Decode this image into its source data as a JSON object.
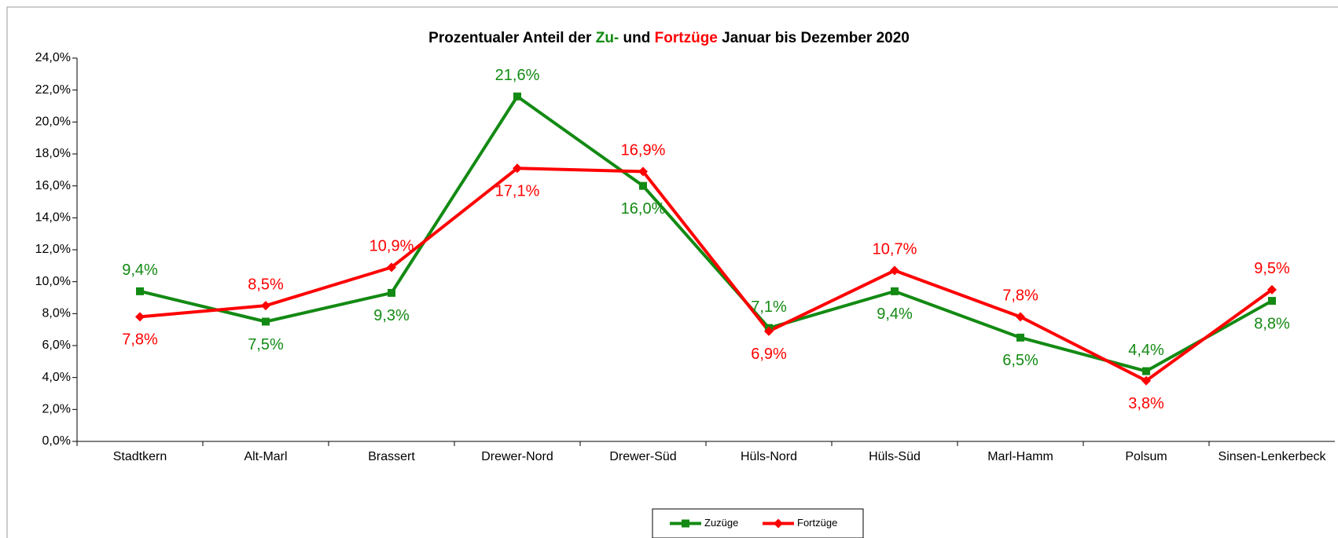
{
  "chart_data": {
    "type": "line",
    "title_parts": [
      {
        "text": "Prozentualer Anteil der"
      },
      {
        "text": "Zu-",
        "color": "#138a13"
      },
      {
        "text": "und"
      },
      {
        "text": "Fortzüge",
        "color": "#ff0000"
      },
      {
        "text": "Januar bis Dezember 2020"
      }
    ],
    "categories": [
      "Stadtkern",
      "Alt-Marl",
      "Brassert",
      "Drewer-Nord",
      "Drewer-Süd",
      "Hüls-Nord",
      "Hüls-Süd",
      "Marl-Hamm",
      "Polsum",
      "Sinsen-Lenkerbeck"
    ],
    "series": [
      {
        "name": "Zuzüge",
        "color": "#138a13",
        "marker": "square",
        "values": [
          9.4,
          7.5,
          9.3,
          21.6,
          16.0,
          7.1,
          9.4,
          6.5,
          4.4,
          8.8
        ],
        "value_labels": [
          "9,4%",
          "7,5%",
          "9,3%",
          "21,6%",
          "16,0%",
          "7,1%",
          "9,4%",
          "6,5%",
          "4,4%",
          "8,8%"
        ]
      },
      {
        "name": "Fortzüge",
        "color": "#ff0000",
        "marker": "diamond",
        "values": [
          7.8,
          8.5,
          10.9,
          17.1,
          16.9,
          6.9,
          10.7,
          7.8,
          3.8,
          9.5
        ],
        "value_labels": [
          "7,8%",
          "8,5%",
          "10,9%",
          "17,1%",
          "16,9%",
          "6,9%",
          "10,7%",
          "7,8%",
          "3,8%",
          "9,5%"
        ]
      }
    ],
    "ylim": [
      0,
      24
    ],
    "yticks": [
      {
        "value": 0,
        "label": "0,0%"
      },
      {
        "value": 2,
        "label": "2,0%"
      },
      {
        "value": 4,
        "label": "4,0%"
      },
      {
        "value": 6,
        "label": "6,0%"
      },
      {
        "value": 8,
        "label": "8,0%"
      },
      {
        "value": 10,
        "label": "10,0%"
      },
      {
        "value": 12,
        "label": "12,0%"
      },
      {
        "value": 14,
        "label": "14,0%"
      },
      {
        "value": 16,
        "label": "16,0%"
      },
      {
        "value": 18,
        "label": "18,0%"
      },
      {
        "value": 20,
        "label": "20,0%"
      },
      {
        "value": 22,
        "label": "22,0%"
      },
      {
        "value": 24,
        "label": "24,0%"
      }
    ],
    "legend": "bottom"
  }
}
